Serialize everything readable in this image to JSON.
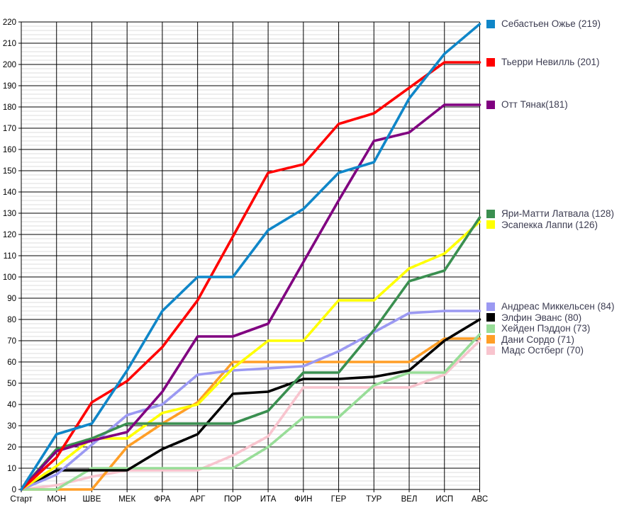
{
  "chart_data": {
    "type": "line",
    "title": "",
    "xlabel": "",
    "ylabel": "",
    "x_categories": [
      "Старт",
      "МОН",
      "ШВЕ",
      "МЕК",
      "ФРА",
      "АРГ",
      "ПОР",
      "ИТА",
      "ФИН",
      "ГЕР",
      "ТУР",
      "ВЕЛ",
      "ИСП",
      "АВС"
    ],
    "ylim": [
      0,
      220
    ],
    "y_tick_step": 10,
    "y_minor_step": 2,
    "grid": true,
    "legend_position": "right-aligned-to-line-ends",
    "colors": {
      "major_grid": "#000000",
      "minor_grid": "#dcdcdc",
      "background": "#ffffff",
      "legend_text": "#3d3d52",
      "axis_text": "#000000"
    },
    "series": [
      {
        "name": "Себастьен Ожье",
        "legend_label": "Себастьен Ожье (219)",
        "total": 219,
        "color": "#0f86c8",
        "values": [
          0,
          26,
          31,
          56,
          84,
          100,
          100,
          122,
          132,
          149,
          154,
          184,
          205,
          219
        ]
      },
      {
        "name": "Тьерри Невилль",
        "legend_label": "Тьерри Невилль (201)",
        "total": 201,
        "color": "#ff0000",
        "values": [
          0,
          15,
          41,
          51,
          67,
          89,
          119,
          149,
          153,
          172,
          177,
          189,
          201,
          201
        ]
      },
      {
        "name": "Отт Тянак",
        "legend_label": "Отт Тянак(181)",
        "total": 181,
        "color": "#800080",
        "values": [
          0,
          18,
          23,
          27,
          46,
          72,
          72,
          78,
          107,
          136,
          164,
          168,
          181,
          181
        ]
      },
      {
        "name": "Яри-Матти Латвала",
        "legend_label": "Яри-Матти Латвала (128)",
        "total": 128,
        "color": "#3a8f50",
        "values": [
          0,
          19,
          24,
          31,
          31,
          31,
          31,
          37,
          55,
          55,
          75,
          98,
          103,
          128
        ]
      },
      {
        "name": "Эсапекка Лаппи",
        "legend_label": "Эсапекка Лаппи (126)",
        "total": 126,
        "color": "#ffff00",
        "values": [
          0,
          11,
          24,
          24,
          36,
          40,
          57,
          70,
          70,
          89,
          89,
          104,
          111,
          126
        ]
      },
      {
        "name": "Андреас Миккельсен",
        "legend_label": "Андреас Миккельсен (84)",
        "total": 84,
        "color": "#9b99f2",
        "values": [
          0,
          7,
          21,
          35,
          40,
          54,
          56,
          57,
          58,
          65,
          74,
          83,
          84,
          84
        ]
      },
      {
        "name": "Элфин Эванс",
        "legend_label": "Элфин Эванс (80)",
        "total": 80,
        "color": "#000000",
        "values": [
          0,
          9,
          9,
          9,
          19,
          26,
          45,
          46,
          52,
          52,
          53,
          56,
          70,
          80
        ]
      },
      {
        "name": "Хейден Пэддон",
        "legend_label": "Хейден Пэддон (73)",
        "total": 73,
        "color": "#98dd98",
        "values": [
          0,
          0,
          10,
          10,
          10,
          10,
          10,
          20,
          34,
          34,
          49,
          55,
          55,
          73
        ]
      },
      {
        "name": "Дани Сордо",
        "legend_label": "Дани Сордо (71)",
        "total": 71,
        "color": "#ff9e26",
        "values": [
          0,
          0,
          0,
          20,
          31,
          41,
          60,
          60,
          60,
          60,
          60,
          60,
          71,
          71
        ]
      },
      {
        "name": "Мадс Остберг",
        "legend_label": "Мадс Остберг (70)",
        "total": 70,
        "color": "#f8c4ce",
        "values": [
          0,
          2,
          6,
          9,
          9,
          9,
          16,
          25,
          48,
          48,
          48,
          48,
          54,
          70
        ]
      }
    ]
  }
}
